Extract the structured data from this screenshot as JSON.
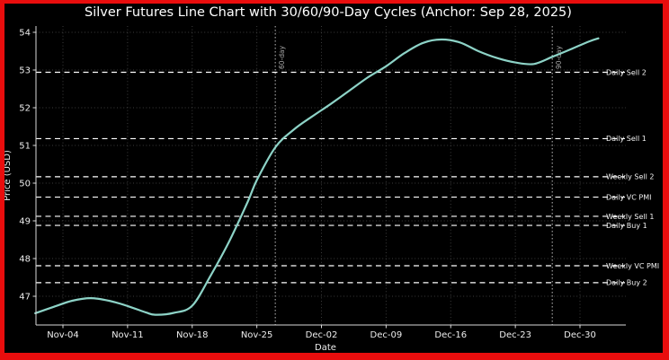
{
  "chart_data": {
    "type": "line",
    "title": "Silver Futures Line Chart with 30/60/90-Day Cycles (Anchor: Sep 28, 2025)",
    "anchor_date": "Sep 28, 2025",
    "xlabel": "Date",
    "ylabel": "Price (USD)",
    "x_tick_labels": [
      "Nov-04",
      "Nov-11",
      "Nov-18",
      "Nov-25",
      "Dec-02",
      "Dec-09",
      "Dec-16",
      "Dec-23",
      "Dec-30"
    ],
    "y_ticks": [
      47,
      48,
      49,
      50,
      51,
      52,
      53,
      54
    ],
    "ylim": [
      46.25,
      54.17
    ],
    "xlim": [
      "Nov-01",
      "Jan-04"
    ],
    "grid": true,
    "legend": "none",
    "series": [
      {
        "name": "Silver Futures",
        "color": "#8dd3c7",
        "points": [
          [
            "Nov-01",
            46.55
          ],
          [
            "Nov-03",
            46.72
          ],
          [
            "Nov-05",
            46.88
          ],
          [
            "Nov-07",
            46.95
          ],
          [
            "Nov-09",
            46.88
          ],
          [
            "Nov-11",
            46.74
          ],
          [
            "Nov-13",
            46.57
          ],
          [
            "Nov-14",
            46.51
          ],
          [
            "Nov-16",
            46.56
          ],
          [
            "Nov-18",
            46.75
          ],
          [
            "Nov-20",
            47.55
          ],
          [
            "Nov-22",
            48.45
          ],
          [
            "Nov-24",
            49.5
          ],
          [
            "Nov-25",
            50.08
          ],
          [
            "Nov-27",
            50.95
          ],
          [
            "Nov-29",
            51.42
          ],
          [
            "Dec-01",
            51.77
          ],
          [
            "Dec-03",
            52.1
          ],
          [
            "Dec-05",
            52.45
          ],
          [
            "Dec-07",
            52.8
          ],
          [
            "Dec-09",
            53.1
          ],
          [
            "Dec-11",
            53.45
          ],
          [
            "Dec-13",
            53.72
          ],
          [
            "Dec-15",
            53.81
          ],
          [
            "Dec-17",
            53.73
          ],
          [
            "Dec-19",
            53.5
          ],
          [
            "Dec-21",
            53.32
          ],
          [
            "Dec-23",
            53.2
          ],
          [
            "Dec-25",
            53.16
          ],
          [
            "Dec-27",
            53.35
          ],
          [
            "Dec-29",
            53.55
          ],
          [
            "Dec-31",
            53.76
          ],
          [
            "Jan-01",
            53.84
          ]
        ]
      }
    ],
    "levels": [
      {
        "label": "Daily Sell 2",
        "price": 52.94
      },
      {
        "label": "Daily Sell 1",
        "price": 51.18
      },
      {
        "label": "Weekly Sell 2",
        "price": 50.17
      },
      {
        "label": "Daily VC PMI",
        "price": 49.63
      },
      {
        "label": "Weekly Sell 1",
        "price": 49.12
      },
      {
        "label": "Daily Buy 1",
        "price": 48.88
      },
      {
        "label": "Weekly VC PMI",
        "price": 47.81
      },
      {
        "label": "Daily Buy 2",
        "price": 47.36
      }
    ],
    "cycle_lines": [
      {
        "label": "60-day",
        "date": "Nov-27"
      },
      {
        "label": "90-day",
        "date": "Dec-27"
      }
    ]
  },
  "colors": {
    "background": "#000000",
    "frame_border": "#e90d0d",
    "line": "#8dd3c7",
    "grid": "#3c3c3c",
    "spine": "#d9d9d9",
    "tick_text": "#ededed",
    "title_text": "#ffffff",
    "level_line": "#ffffff",
    "level_text": "#f2f2f2",
    "cycle_line": "#9c9c9c",
    "cycle_text": "#a8a8a8"
  }
}
